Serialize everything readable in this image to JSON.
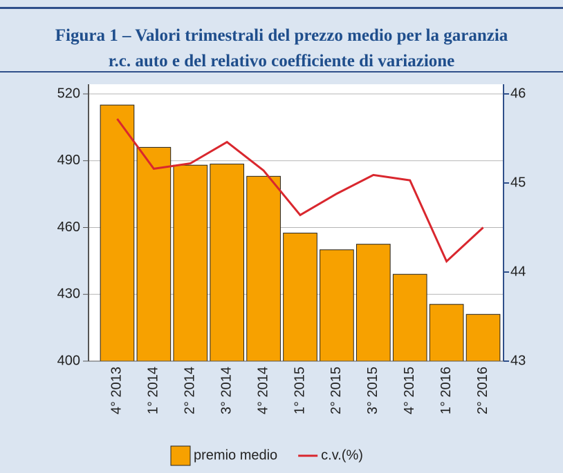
{
  "chart_data": {
    "type": "bar",
    "title": [
      "Figura 1 – Valori trimestrali del prezzo medio per la garanzia",
      "r.c. auto e del relativo coefficiente di variazione"
    ],
    "categories": [
      "4° 2013",
      "1° 2014",
      "2° 2014",
      "3° 2014",
      "4° 2014",
      "1° 2015",
      "2° 2015",
      "3° 2015",
      "4° 2015",
      "1° 2016",
      "2° 2016"
    ],
    "series": [
      {
        "name": "premio medio",
        "type": "bar",
        "color": "#f7a100",
        "values": [
          515,
          496,
          488,
          488.5,
          483,
          457.5,
          450,
          452.5,
          439,
          425.5,
          421
        ]
      },
      {
        "name": "c.v.(%)",
        "type": "line",
        "axis": "y2",
        "color": "#d9272e",
        "values": [
          45.72,
          45.16,
          45.22,
          45.46,
          45.14,
          44.64,
          44.88,
          45.09,
          45.03,
          44.12,
          44.5
        ]
      }
    ],
    "ylim": [
      400,
      520
    ],
    "yticks": [
      400,
      430,
      460,
      490,
      520
    ],
    "y2lim": [
      43,
      46
    ],
    "y2ticks": [
      43,
      44,
      45,
      46
    ],
    "grid": true,
    "legend": "bottom"
  }
}
